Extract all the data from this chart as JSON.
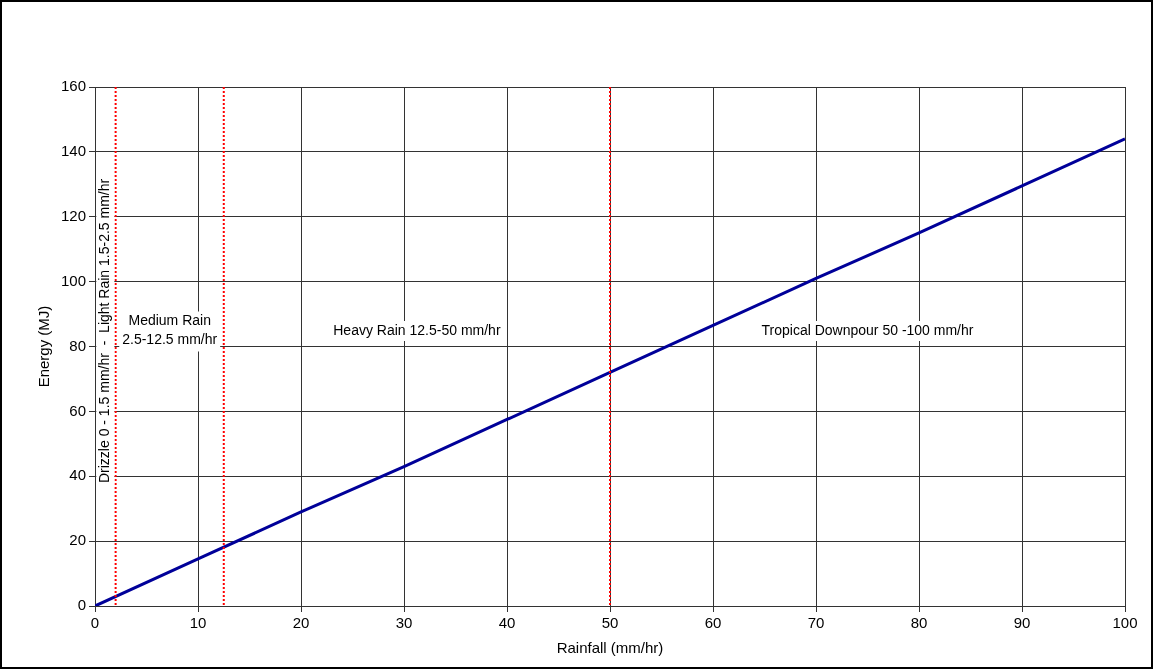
{
  "chart_data": {
    "type": "line",
    "xlabel": "Rainfall (mm/hr)",
    "ylabel": "Energy (MJ)",
    "x": [
      0,
      10,
      20,
      30,
      40,
      50,
      60,
      70,
      80,
      90,
      100
    ],
    "series": [
      {
        "color": "#000099",
        "values": [
          0,
          14.5,
          29,
          43,
          57.5,
          72,
          86.5,
          101,
          115,
          129.5,
          144
        ]
      }
    ],
    "xlim": [
      0,
      100
    ],
    "xticks": [
      0,
      10,
      20,
      30,
      40,
      50,
      60,
      70,
      80,
      90,
      100
    ],
    "ylim": [
      0,
      160
    ],
    "yticks": [
      0,
      20,
      40,
      60,
      80,
      100,
      120,
      140,
      160
    ],
    "grid": true,
    "legend": false,
    "marker": "none",
    "line_style": "solid",
    "ref_lines": [
      {
        "axis": "x",
        "value": 2,
        "color": "#ff0000",
        "line_style": "dotted"
      },
      {
        "axis": "x",
        "value": 12.5,
        "color": "#ff0000",
        "line_style": "dotted"
      },
      {
        "axis": "x",
        "value": 50,
        "color": "#ff0000",
        "line_style": "dotted"
      }
    ],
    "annotations": [
      "Drizzle 0 - 1.5 mm/hr  -  Light Rain 1.5-2.5 mm/hr",
      "Medium Rain 2.5-12.5 mm/hr",
      "Heavy Rain 12.5-50 mm/hr",
      "Tropical Downpour 50 -100 mm/hr"
    ]
  }
}
